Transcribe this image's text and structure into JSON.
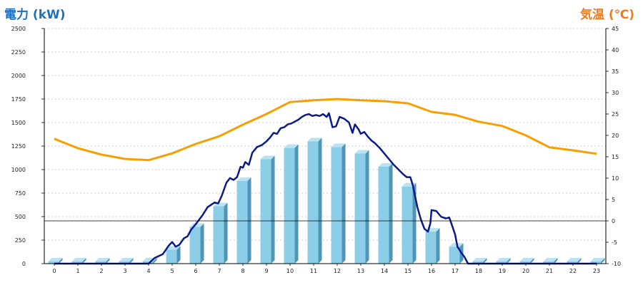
{
  "chart_data": {
    "type": "bar",
    "left_title": "電力 (kW)",
    "right_title": "気温 (℃)",
    "categories": [
      "0",
      "1",
      "2",
      "3",
      "4",
      "5",
      "6",
      "7",
      "8",
      "9",
      "10",
      "11",
      "12",
      "13",
      "14",
      "15",
      "16",
      "17",
      "18",
      "19",
      "20",
      "21",
      "22",
      "23"
    ],
    "bar_series": {
      "axis": "left",
      "values": [
        0,
        0,
        0,
        0,
        0,
        150,
        390,
        610,
        880,
        1110,
        1230,
        1300,
        1240,
        1170,
        1030,
        820,
        340,
        180,
        0,
        0,
        0,
        0,
        0,
        0
      ],
      "color": "#8ccde8"
    },
    "power_line": {
      "axis": "left",
      "color": "#0a1a8c",
      "points": [
        [
          0,
          0
        ],
        [
          1,
          0
        ],
        [
          2,
          0
        ],
        [
          3,
          0
        ],
        [
          4,
          0
        ],
        [
          4.25,
          60
        ],
        [
          4.6,
          100
        ],
        [
          4.85,
          190
        ],
        [
          5.0,
          230
        ],
        [
          5.15,
          180
        ],
        [
          5.3,
          200
        ],
        [
          5.5,
          270
        ],
        [
          5.65,
          290
        ],
        [
          5.8,
          360
        ],
        [
          6.0,
          420
        ],
        [
          6.3,
          520
        ],
        [
          6.5,
          600
        ],
        [
          6.8,
          650
        ],
        [
          6.95,
          640
        ],
        [
          7.1,
          720
        ],
        [
          7.3,
          860
        ],
        [
          7.45,
          910
        ],
        [
          7.6,
          890
        ],
        [
          7.75,
          920
        ],
        [
          7.9,
          1030
        ],
        [
          8.0,
          1020
        ],
        [
          8.1,
          1080
        ],
        [
          8.25,
          1050
        ],
        [
          8.4,
          1180
        ],
        [
          8.6,
          1240
        ],
        [
          8.8,
          1260
        ],
        [
          9.0,
          1300
        ],
        [
          9.15,
          1340
        ],
        [
          9.3,
          1390
        ],
        [
          9.45,
          1380
        ],
        [
          9.6,
          1440
        ],
        [
          9.75,
          1450
        ],
        [
          9.9,
          1480
        ],
        [
          10.05,
          1490
        ],
        [
          10.2,
          1510
        ],
        [
          10.35,
          1530
        ],
        [
          10.5,
          1560
        ],
        [
          10.65,
          1580
        ],
        [
          10.8,
          1590
        ],
        [
          10.95,
          1570
        ],
        [
          11.1,
          1580
        ],
        [
          11.25,
          1570
        ],
        [
          11.4,
          1590
        ],
        [
          11.55,
          1560
        ],
        [
          11.65,
          1600
        ],
        [
          11.8,
          1450
        ],
        [
          11.95,
          1460
        ],
        [
          12.1,
          1560
        ],
        [
          12.3,
          1540
        ],
        [
          12.5,
          1500
        ],
        [
          12.65,
          1390
        ],
        [
          12.75,
          1480
        ],
        [
          12.9,
          1430
        ],
        [
          13.0,
          1380
        ],
        [
          13.15,
          1400
        ],
        [
          13.3,
          1350
        ],
        [
          13.45,
          1310
        ],
        [
          13.6,
          1280
        ],
        [
          13.8,
          1230
        ],
        [
          14.0,
          1170
        ],
        [
          14.2,
          1110
        ],
        [
          14.4,
          1050
        ],
        [
          14.6,
          1000
        ],
        [
          14.8,
          950
        ],
        [
          14.95,
          920
        ],
        [
          15.1,
          920
        ],
        [
          15.2,
          840
        ],
        [
          15.4,
          600
        ],
        [
          15.55,
          470
        ],
        [
          15.7,
          370
        ],
        [
          15.85,
          340
        ],
        [
          15.95,
          430
        ],
        [
          16.0,
          570
        ],
        [
          16.2,
          560
        ],
        [
          16.4,
          500
        ],
        [
          16.6,
          480
        ],
        [
          16.75,
          490
        ],
        [
          16.85,
          420
        ],
        [
          17.0,
          310
        ],
        [
          17.1,
          180
        ],
        [
          17.25,
          120
        ],
        [
          17.4,
          70
        ],
        [
          17.55,
          0
        ],
        [
          18,
          0
        ],
        [
          19,
          0
        ],
        [
          20,
          0
        ],
        [
          21,
          0
        ],
        [
          22,
          0
        ],
        [
          23,
          0
        ]
      ]
    },
    "temperature_line": {
      "axis": "right",
      "color": "#f5a000",
      "points": [
        [
          0,
          19.2
        ],
        [
          1,
          17.0
        ],
        [
          2,
          15.5
        ],
        [
          3,
          14.5
        ],
        [
          4,
          14.2
        ],
        [
          5,
          15.8
        ],
        [
          6,
          18.0
        ],
        [
          7,
          19.8
        ],
        [
          8,
          22.5
        ],
        [
          9,
          25.0
        ],
        [
          10,
          27.8
        ],
        [
          11,
          28.2
        ],
        [
          12,
          28.5
        ],
        [
          13,
          28.2
        ],
        [
          14,
          28.0
        ],
        [
          15,
          27.5
        ],
        [
          16,
          25.5
        ],
        [
          17,
          24.8
        ],
        [
          18,
          23.2
        ],
        [
          19,
          22.2
        ],
        [
          20,
          20.0
        ],
        [
          21,
          17.2
        ],
        [
          22,
          16.5
        ],
        [
          23,
          15.7
        ]
      ]
    },
    "left_axis": {
      "min": 0,
      "max": 2500,
      "ticks": [
        "0",
        "250",
        "500",
        "750",
        "1000",
        "1250",
        "1500",
        "1750",
        "2000",
        "2250",
        "2500"
      ]
    },
    "right_axis": {
      "min": -10,
      "max": 45,
      "ticks": [
        "-10",
        "-5",
        "0",
        "5",
        "10",
        "15",
        "20",
        "25",
        "30",
        "35",
        "40",
        "45"
      ]
    },
    "grid": true
  }
}
